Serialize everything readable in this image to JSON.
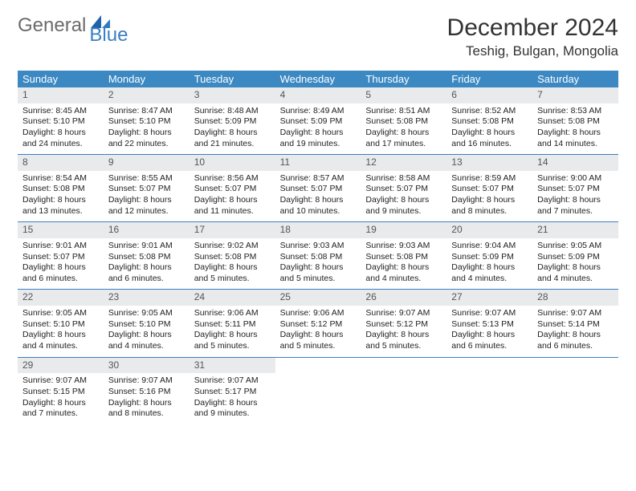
{
  "brand": {
    "part1": "General",
    "part2": "Blue"
  },
  "title": "December 2024",
  "location": "Teshig, Bulgan, Mongolia",
  "colors": {
    "header_bg": "#3b88c3",
    "brand_blue": "#3b7fc4",
    "daynum_bg": "#e8eaec",
    "rule": "#3b7fc4"
  },
  "weekdays": [
    "Sunday",
    "Monday",
    "Tuesday",
    "Wednesday",
    "Thursday",
    "Friday",
    "Saturday"
  ],
  "days": [
    {
      "n": "1",
      "sr": "Sunrise: 8:45 AM",
      "ss": "Sunset: 5:10 PM",
      "d1": "Daylight: 8 hours",
      "d2": "and 24 minutes."
    },
    {
      "n": "2",
      "sr": "Sunrise: 8:47 AM",
      "ss": "Sunset: 5:10 PM",
      "d1": "Daylight: 8 hours",
      "d2": "and 22 minutes."
    },
    {
      "n": "3",
      "sr": "Sunrise: 8:48 AM",
      "ss": "Sunset: 5:09 PM",
      "d1": "Daylight: 8 hours",
      "d2": "and 21 minutes."
    },
    {
      "n": "4",
      "sr": "Sunrise: 8:49 AM",
      "ss": "Sunset: 5:09 PM",
      "d1": "Daylight: 8 hours",
      "d2": "and 19 minutes."
    },
    {
      "n": "5",
      "sr": "Sunrise: 8:51 AM",
      "ss": "Sunset: 5:08 PM",
      "d1": "Daylight: 8 hours",
      "d2": "and 17 minutes."
    },
    {
      "n": "6",
      "sr": "Sunrise: 8:52 AM",
      "ss": "Sunset: 5:08 PM",
      "d1": "Daylight: 8 hours",
      "d2": "and 16 minutes."
    },
    {
      "n": "7",
      "sr": "Sunrise: 8:53 AM",
      "ss": "Sunset: 5:08 PM",
      "d1": "Daylight: 8 hours",
      "d2": "and 14 minutes."
    },
    {
      "n": "8",
      "sr": "Sunrise: 8:54 AM",
      "ss": "Sunset: 5:08 PM",
      "d1": "Daylight: 8 hours",
      "d2": "and 13 minutes."
    },
    {
      "n": "9",
      "sr": "Sunrise: 8:55 AM",
      "ss": "Sunset: 5:07 PM",
      "d1": "Daylight: 8 hours",
      "d2": "and 12 minutes."
    },
    {
      "n": "10",
      "sr": "Sunrise: 8:56 AM",
      "ss": "Sunset: 5:07 PM",
      "d1": "Daylight: 8 hours",
      "d2": "and 11 minutes."
    },
    {
      "n": "11",
      "sr": "Sunrise: 8:57 AM",
      "ss": "Sunset: 5:07 PM",
      "d1": "Daylight: 8 hours",
      "d2": "and 10 minutes."
    },
    {
      "n": "12",
      "sr": "Sunrise: 8:58 AM",
      "ss": "Sunset: 5:07 PM",
      "d1": "Daylight: 8 hours",
      "d2": "and 9 minutes."
    },
    {
      "n": "13",
      "sr": "Sunrise: 8:59 AM",
      "ss": "Sunset: 5:07 PM",
      "d1": "Daylight: 8 hours",
      "d2": "and 8 minutes."
    },
    {
      "n": "14",
      "sr": "Sunrise: 9:00 AM",
      "ss": "Sunset: 5:07 PM",
      "d1": "Daylight: 8 hours",
      "d2": "and 7 minutes."
    },
    {
      "n": "15",
      "sr": "Sunrise: 9:01 AM",
      "ss": "Sunset: 5:07 PM",
      "d1": "Daylight: 8 hours",
      "d2": "and 6 minutes."
    },
    {
      "n": "16",
      "sr": "Sunrise: 9:01 AM",
      "ss": "Sunset: 5:08 PM",
      "d1": "Daylight: 8 hours",
      "d2": "and 6 minutes."
    },
    {
      "n": "17",
      "sr": "Sunrise: 9:02 AM",
      "ss": "Sunset: 5:08 PM",
      "d1": "Daylight: 8 hours",
      "d2": "and 5 minutes."
    },
    {
      "n": "18",
      "sr": "Sunrise: 9:03 AM",
      "ss": "Sunset: 5:08 PM",
      "d1": "Daylight: 8 hours",
      "d2": "and 5 minutes."
    },
    {
      "n": "19",
      "sr": "Sunrise: 9:03 AM",
      "ss": "Sunset: 5:08 PM",
      "d1": "Daylight: 8 hours",
      "d2": "and 4 minutes."
    },
    {
      "n": "20",
      "sr": "Sunrise: 9:04 AM",
      "ss": "Sunset: 5:09 PM",
      "d1": "Daylight: 8 hours",
      "d2": "and 4 minutes."
    },
    {
      "n": "21",
      "sr": "Sunrise: 9:05 AM",
      "ss": "Sunset: 5:09 PM",
      "d1": "Daylight: 8 hours",
      "d2": "and 4 minutes."
    },
    {
      "n": "22",
      "sr": "Sunrise: 9:05 AM",
      "ss": "Sunset: 5:10 PM",
      "d1": "Daylight: 8 hours",
      "d2": "and 4 minutes."
    },
    {
      "n": "23",
      "sr": "Sunrise: 9:05 AM",
      "ss": "Sunset: 5:10 PM",
      "d1": "Daylight: 8 hours",
      "d2": "and 4 minutes."
    },
    {
      "n": "24",
      "sr": "Sunrise: 9:06 AM",
      "ss": "Sunset: 5:11 PM",
      "d1": "Daylight: 8 hours",
      "d2": "and 5 minutes."
    },
    {
      "n": "25",
      "sr": "Sunrise: 9:06 AM",
      "ss": "Sunset: 5:12 PM",
      "d1": "Daylight: 8 hours",
      "d2": "and 5 minutes."
    },
    {
      "n": "26",
      "sr": "Sunrise: 9:07 AM",
      "ss": "Sunset: 5:12 PM",
      "d1": "Daylight: 8 hours",
      "d2": "and 5 minutes."
    },
    {
      "n": "27",
      "sr": "Sunrise: 9:07 AM",
      "ss": "Sunset: 5:13 PM",
      "d1": "Daylight: 8 hours",
      "d2": "and 6 minutes."
    },
    {
      "n": "28",
      "sr": "Sunrise: 9:07 AM",
      "ss": "Sunset: 5:14 PM",
      "d1": "Daylight: 8 hours",
      "d2": "and 6 minutes."
    },
    {
      "n": "29",
      "sr": "Sunrise: 9:07 AM",
      "ss": "Sunset: 5:15 PM",
      "d1": "Daylight: 8 hours",
      "d2": "and 7 minutes."
    },
    {
      "n": "30",
      "sr": "Sunrise: 9:07 AM",
      "ss": "Sunset: 5:16 PM",
      "d1": "Daylight: 8 hours",
      "d2": "and 8 minutes."
    },
    {
      "n": "31",
      "sr": "Sunrise: 9:07 AM",
      "ss": "Sunset: 5:17 PM",
      "d1": "Daylight: 8 hours",
      "d2": "and 9 minutes."
    }
  ]
}
